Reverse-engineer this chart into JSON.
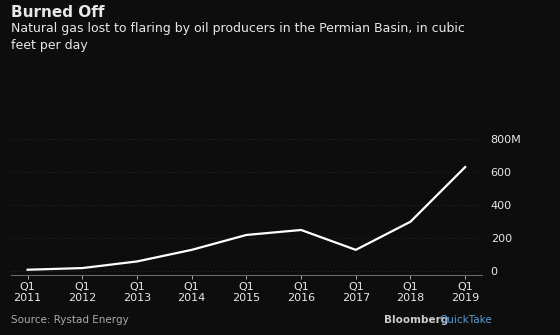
{
  "title_bold": "Burned Off",
  "subtitle": "Natural gas lost to flaring by oil producers in the Permian Basin, in cubic\nfeet per day",
  "source": "Source: Rystad Energy",
  "background_color": "#0d0d0d",
  "text_color": "#e8e8e8",
  "line_color": "#ffffff",
  "grid_color": "#333333",
  "axis_color": "#666666",
  "x_labels": [
    "Q1\n2011",
    "Q1\n2012",
    "Q1\n2013",
    "Q1\n2014",
    "Q1\n2015",
    "Q1\n2016",
    "Q1\n2017",
    "Q1\n2018",
    "Q1\n2019"
  ],
  "x_values": [
    0,
    1,
    2,
    3,
    4,
    5,
    6,
    7,
    8
  ],
  "y_values": [
    10,
    20,
    60,
    130,
    220,
    250,
    130,
    300,
    630
  ],
  "ylim": [
    -20,
    870
  ],
  "yticks": [
    0,
    200,
    400,
    600,
    800
  ],
  "ytick_labels": [
    "0",
    "200",
    "400",
    "600",
    "800M"
  ],
  "title_fontsize": 11,
  "subtitle_fontsize": 9,
  "source_fontsize": 7.5,
  "watermark_fontsize": 7.5,
  "tick_fontsize": 8
}
